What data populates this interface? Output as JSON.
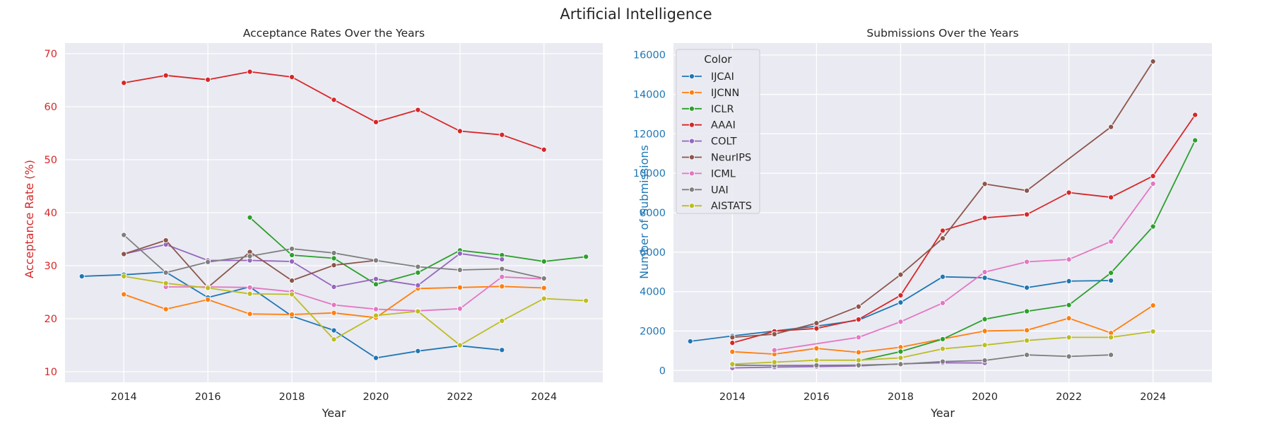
{
  "suptitle": "Artificial Intelligence",
  "colors": {
    "plot_bg": "#eaeaf2",
    "grid": "#ffffff",
    "left_axis": "#d62728",
    "right_axis": "#1f77b4",
    "text": "#262626"
  },
  "legend": {
    "title": "Color",
    "placement": "upper-left of right chart"
  },
  "chart_data": [
    {
      "type": "line",
      "title": "Acceptance Rates Over the Years",
      "xlabel": "Year",
      "ylabel": "Acceptance Rate (%)",
      "xlim": [
        2012.6,
        2025.4
      ],
      "ylim": [
        8,
        72
      ],
      "xticks": [
        2014,
        2016,
        2018,
        2020,
        2022,
        2024
      ],
      "yticks": [
        10,
        20,
        30,
        40,
        50,
        60,
        70
      ],
      "grid": true,
      "series": [
        {
          "name": "IJCAI",
          "color": "#1f77b4",
          "x": [
            2013,
            2014,
            2015,
            2016,
            2017,
            2018,
            2019,
            2020,
            2021,
            2022,
            2023
          ],
          "y": [
            28.0,
            28.3,
            28.8,
            24.0,
            26.0,
            20.5,
            17.8,
            12.6,
            13.9,
            14.9,
            14.1
          ]
        },
        {
          "name": "IJCNN",
          "color": "#ff7f0e",
          "x": [
            2014,
            2015,
            2016,
            2017,
            2018,
            2019,
            2020,
            2021,
            2022,
            2023,
            2024
          ],
          "y": [
            24.6,
            21.8,
            23.6,
            20.9,
            20.8,
            21.1,
            20.2,
            25.7,
            25.9,
            26.1,
            25.8
          ]
        },
        {
          "name": "ICLR",
          "color": "#2ca02c",
          "x": [
            2017,
            2018,
            2019,
            2020,
            2021,
            2022,
            2023,
            2024,
            2025
          ],
          "y": [
            39.1,
            32.0,
            31.4,
            26.5,
            28.7,
            32.9,
            32.0,
            30.8,
            31.7
          ]
        },
        {
          "name": "AAAI",
          "color": "#d62728",
          "x": [
            2014,
            2015,
            2016,
            2017,
            2018,
            2019,
            2020,
            2021,
            2022,
            2023,
            2024
          ],
          "y": [
            64.5,
            65.9,
            65.1,
            66.6,
            65.6,
            61.3,
            57.1,
            59.4,
            55.4,
            54.7,
            51.9
          ]
        },
        {
          "name": "COLT",
          "color": "#9467bd",
          "x": [
            2014,
            2015,
            2016,
            2017,
            2018,
            2019,
            2020,
            2021,
            2022,
            2023
          ],
          "y": [
            32.2,
            34.0,
            31.0,
            31.0,
            30.8,
            26.0,
            27.5,
            26.3,
            32.3,
            31.2
          ]
        },
        {
          "name": "NeurIPS",
          "color": "#8c564b",
          "x": [
            2014,
            2015,
            2016,
            2017,
            2018,
            2019,
            2020
          ],
          "y": [
            32.2,
            34.8,
            25.9,
            32.6,
            27.2,
            30.1,
            31.0
          ]
        },
        {
          "name": "ICML",
          "color": "#e377c2",
          "x": [
            2015,
            2016,
            2017,
            2018,
            2019,
            2020,
            2021,
            2022,
            2023,
            2024
          ],
          "y": [
            26.0,
            26.0,
            25.9,
            25.1,
            22.6,
            21.8,
            21.5,
            21.9,
            27.9,
            27.5
          ]
        },
        {
          "name": "UAI",
          "color": "#7f7f7f",
          "x": [
            2014,
            2015,
            2016,
            2017,
            2018,
            2019,
            2020,
            2021,
            2022,
            2023,
            2024
          ],
          "y": [
            35.8,
            28.7,
            30.7,
            31.8,
            33.2,
            32.4,
            31.0,
            29.8,
            29.2,
            29.4,
            27.6
          ]
        },
        {
          "name": "AISTATS",
          "color": "#bcbd22",
          "x": [
            2014,
            2015,
            2016,
            2017,
            2018,
            2019,
            2020,
            2021,
            2022,
            2023,
            2024,
            2025
          ],
          "y": [
            28.0,
            26.7,
            25.8,
            24.7,
            24.6,
            16.1,
            20.6,
            21.4,
            15.0,
            19.6,
            23.8,
            23.4
          ]
        }
      ]
    },
    {
      "type": "line",
      "title": "Submissions Over the Years",
      "xlabel": "Year",
      "ylabel": "Number of Submissions",
      "xlim": [
        2012.6,
        2025.4
      ],
      "ylim": [
        -600,
        16600
      ],
      "xticks": [
        2014,
        2016,
        2018,
        2020,
        2022,
        2024
      ],
      "yticks": [
        0,
        2000,
        4000,
        6000,
        8000,
        10000,
        12000,
        14000,
        16000
      ],
      "grid": true,
      "series": [
        {
          "name": "IJCAI",
          "color": "#1f77b4",
          "x": [
            2013,
            2014,
            2015,
            2016,
            2017,
            2018,
            2019,
            2020,
            2021,
            2022,
            2023
          ],
          "y": [
            1480,
            1750,
            2000,
            2250,
            2550,
            3450,
            4750,
            4700,
            4200,
            4530,
            4560
          ]
        },
        {
          "name": "IJCNN",
          "color": "#ff7f0e",
          "x": [
            2014,
            2015,
            2016,
            2017,
            2018,
            2019,
            2020,
            2021,
            2022,
            2023,
            2024
          ],
          "y": [
            950,
            830,
            1120,
            920,
            1180,
            1600,
            2000,
            2040,
            2650,
            1900,
            3300
          ]
        },
        {
          "name": "ICLR",
          "color": "#2ca02c",
          "x": [
            2017,
            2018,
            2019,
            2020,
            2021,
            2022,
            2023,
            2024,
            2025
          ],
          "y": [
            490,
            960,
            1590,
            2600,
            3000,
            3320,
            4950,
            7300,
            11670
          ]
        },
        {
          "name": "AAAI",
          "color": "#d62728",
          "x": [
            2014,
            2015,
            2016,
            2017,
            2018,
            2019,
            2020,
            2021,
            2022,
            2023,
            2024,
            2025
          ],
          "y": [
            1400,
            1990,
            2130,
            2590,
            3810,
            7090,
            7740,
            7910,
            9020,
            8780,
            9860,
            12960
          ]
        },
        {
          "name": "COLT",
          "color": "#9467bd",
          "x": [
            2014,
            2015,
            2016,
            2017,
            2018,
            2019,
            2020
          ],
          "y": [
            130,
            170,
            200,
            230,
            340,
            390,
            380
          ]
        },
        {
          "name": "NeurIPS",
          "color": "#8c564b",
          "x": [
            2014,
            2015,
            2016,
            2017,
            2018,
            2019,
            2020,
            2021,
            2023,
            2024
          ],
          "y": [
            1680,
            1840,
            2400,
            3240,
            4860,
            6700,
            9460,
            9120,
            12350,
            15670
          ]
        },
        {
          "name": "ICML",
          "color": "#e377c2",
          "x": [
            2015,
            2017,
            2018,
            2019,
            2020,
            2021,
            2022,
            2023,
            2024
          ],
          "y": [
            1030,
            1680,
            2470,
            3420,
            4990,
            5510,
            5630,
            6540,
            9470
          ]
        },
        {
          "name": "UAI",
          "color": "#7f7f7f",
          "x": [
            2014,
            2015,
            2016,
            2017,
            2018,
            2019,
            2020,
            2021,
            2022,
            2023
          ],
          "y": [
            270,
            250,
            260,
            270,
            320,
            450,
            510,
            790,
            710,
            790
          ]
        },
        {
          "name": "AISTATS",
          "color": "#bcbd22",
          "x": [
            2014,
            2015,
            2016,
            2017,
            2018,
            2019,
            2020,
            2021,
            2022,
            2023,
            2024
          ],
          "y": [
            320,
            420,
            520,
            520,
            640,
            1100,
            1290,
            1520,
            1680,
            1680,
            1980
          ]
        }
      ]
    }
  ]
}
